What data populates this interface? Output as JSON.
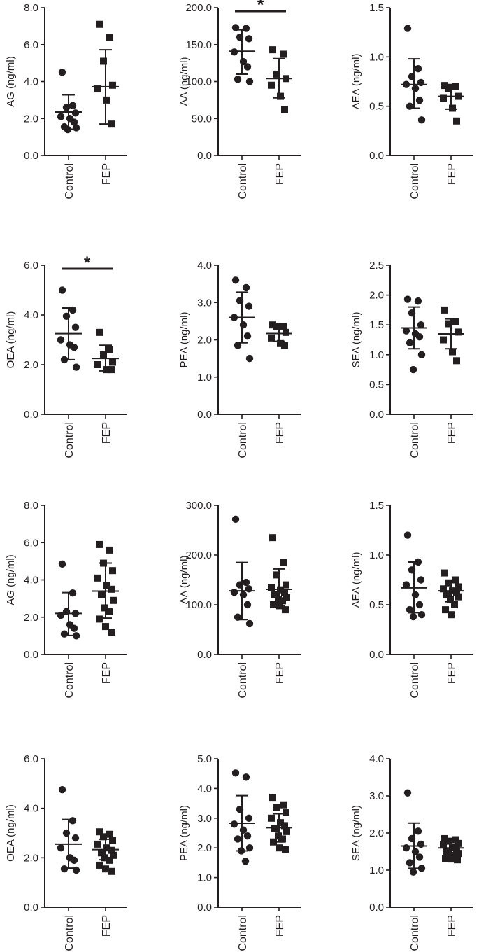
{
  "charts": [
    {
      "ylabel": "AG (ng/ml)",
      "ylim": [
        0,
        8
      ],
      "ticks": [
        "0.0",
        "2.0",
        "4.0",
        "6.0",
        "8.0"
      ],
      "categories": [
        "Control",
        "FEP"
      ],
      "significance": "",
      "control": {
        "mean": 2.35,
        "sd_low": 1.42,
        "sd_high": 3.28,
        "values": [
          4.5,
          2.7,
          2.6,
          2.3,
          2.1,
          2.0,
          1.8,
          1.55,
          1.5,
          1.4
        ]
      },
      "fep": {
        "mean": 3.72,
        "sd_low": 1.7,
        "sd_high": 5.72,
        "values": [
          7.1,
          6.4,
          5.1,
          3.8,
          3.6,
          3.0,
          1.7
        ]
      }
    },
    {
      "ylabel": "AA (ng/ml)",
      "ylim": [
        0,
        200
      ],
      "ticks": [
        "0.0",
        "50.0",
        "100.0",
        "150.0",
        "200.0"
      ],
      "categories": [
        "Control",
        "FEP"
      ],
      "significance": "*",
      "control": {
        "mean": 141,
        "sd_low": 110,
        "sd_high": 170,
        "values": [
          173,
          172,
          160,
          158,
          140,
          127,
          120,
          103,
          100
        ]
      },
      "fep": {
        "mean": 104,
        "sd_low": 78,
        "sd_high": 131,
        "values": [
          143,
          137,
          110,
          104,
          95,
          80,
          62
        ]
      }
    },
    {
      "ylabel": "AEA (ng/ml)",
      "ylim": [
        0,
        1.5
      ],
      "ticks": [
        "0.0",
        "0.5",
        "1.0",
        "1.5"
      ],
      "categories": [
        "Control",
        "FEP"
      ],
      "significance": "",
      "control": {
        "mean": 0.72,
        "sd_low": 0.48,
        "sd_high": 0.98,
        "values": [
          1.29,
          0.88,
          0.8,
          0.74,
          0.72,
          0.68,
          0.56,
          0.5,
          0.36
        ]
      },
      "fep": {
        "mean": 0.6,
        "sd_low": 0.47,
        "sd_high": 0.72,
        "values": [
          0.71,
          0.7,
          0.68,
          0.6,
          0.58,
          0.48,
          0.35
        ]
      }
    },
    {
      "ylabel": "OEA (ng/ml)",
      "ylim": [
        0,
        6
      ],
      "ticks": [
        "0.0",
        "2.0",
        "4.0",
        "6.0"
      ],
      "categories": [
        "Control",
        "FEP"
      ],
      "significance": "*",
      "control": {
        "mean": 3.25,
        "sd_low": 2.2,
        "sd_high": 4.28,
        "values": [
          5.0,
          4.2,
          3.95,
          3.5,
          3.0,
          2.8,
          2.7,
          2.2,
          1.9
        ]
      },
      "fep": {
        "mean": 2.25,
        "sd_low": 1.75,
        "sd_high": 2.78,
        "values": [
          3.3,
          2.6,
          2.4,
          2.1,
          2.0,
          1.8,
          1.8
        ]
      }
    },
    {
      "ylabel": "PEA (ng/ml)",
      "ylim": [
        0,
        4
      ],
      "ticks": [
        "0.0",
        "1.0",
        "2.0",
        "3.0",
        "4.0"
      ],
      "categories": [
        "Control",
        "FEP"
      ],
      "significance": "",
      "control": {
        "mean": 2.6,
        "sd_low": 1.92,
        "sd_high": 3.28,
        "values": [
          3.6,
          3.4,
          3.05,
          2.9,
          2.6,
          2.4,
          2.1,
          1.85,
          1.5
        ]
      },
      "fep": {
        "mean": 2.17,
        "sd_low": 1.96,
        "sd_high": 2.38,
        "values": [
          2.4,
          2.35,
          2.35,
          2.2,
          2.05,
          1.9,
          1.85
        ]
      }
    },
    {
      "ylabel": "SEA (ng/ml)",
      "ylim": [
        0,
        2.5
      ],
      "ticks": [
        "0.0",
        "0.5",
        "1.0",
        "1.5",
        "2.0",
        "2.5"
      ],
      "categories": [
        "Control",
        "FEP"
      ],
      "significance": "",
      "control": {
        "mean": 1.45,
        "sd_low": 1.1,
        "sd_high": 1.8,
        "values": [
          1.93,
          1.9,
          1.7,
          1.5,
          1.4,
          1.35,
          1.3,
          1.2,
          1.0,
          0.75
        ]
      },
      "fep": {
        "mean": 1.35,
        "sd_low": 1.1,
        "sd_high": 1.6,
        "values": [
          1.75,
          1.55,
          1.52,
          1.38,
          1.25,
          1.05,
          0.9
        ]
      }
    },
    {
      "ylabel": "AG (ng/ml)",
      "ylim": [
        0,
        8
      ],
      "ticks": [
        "0.0",
        "2.0",
        "4.0",
        "6.0",
        "8.0"
      ],
      "categories": [
        "Control",
        "FEP"
      ],
      "significance": "",
      "control": {
        "mean": 2.2,
        "sd_low": 1.02,
        "sd_high": 3.32,
        "values": [
          4.85,
          3.3,
          2.3,
          2.2,
          2.1,
          1.6,
          1.4,
          1.1,
          1.0
        ]
      },
      "fep": {
        "mean": 3.4,
        "sd_low": 1.95,
        "sd_high": 4.9,
        "values": [
          5.9,
          5.6,
          4.9,
          4.5,
          4.1,
          3.7,
          3.5,
          3.2,
          2.9,
          2.5,
          2.3,
          1.9,
          1.5,
          1.2
        ]
      }
    },
    {
      "ylabel": "AA (ng/ml)",
      "ylim": [
        0,
        300
      ],
      "ticks": [
        "0.0",
        "100.0",
        "200.0",
        "300.0"
      ],
      "categories": [
        "Control",
        "FEP"
      ],
      "significance": "",
      "control": {
        "mean": 128,
        "sd_low": 70,
        "sd_high": 185,
        "values": [
          272,
          145,
          140,
          132,
          125,
          120,
          100,
          75,
          62
        ]
      },
      "fep": {
        "mean": 131,
        "sd_low": 98,
        "sd_high": 172,
        "values": [
          235,
          185,
          160,
          140,
          135,
          130,
          125,
          120,
          115,
          110,
          108,
          100,
          98,
          90
        ]
      }
    },
    {
      "ylabel": "AEA (ng/ml)",
      "ylim": [
        0,
        1.5
      ],
      "ticks": [
        "0.0",
        "0.5",
        "1.0",
        "1.5"
      ],
      "categories": [
        "Control",
        "FEP"
      ],
      "significance": "",
      "control": {
        "mean": 0.67,
        "sd_low": 0.42,
        "sd_high": 0.93,
        "values": [
          1.2,
          0.93,
          0.85,
          0.75,
          0.7,
          0.6,
          0.5,
          0.45,
          0.4,
          0.38
        ]
      },
      "fep": {
        "mean": 0.64,
        "sd_low": 0.53,
        "sd_high": 0.74,
        "values": [
          0.82,
          0.75,
          0.72,
          0.68,
          0.66,
          0.64,
          0.62,
          0.6,
          0.58,
          0.55,
          0.5,
          0.45,
          0.4
        ]
      }
    },
    {
      "ylabel": "OEA (ng/ml)",
      "ylim": [
        0,
        6
      ],
      "ticks": [
        "0.0",
        "2.0",
        "4.0",
        "6.0"
      ],
      "categories": [
        "Control",
        "FEP"
      ],
      "significance": "",
      "control": {
        "mean": 2.55,
        "sd_low": 1.58,
        "sd_high": 3.55,
        "values": [
          4.75,
          3.5,
          3.0,
          2.8,
          2.4,
          2.0,
          1.9,
          1.55,
          1.5
        ]
      },
      "fep": {
        "mean": 2.33,
        "sd_low": 1.92,
        "sd_high": 2.75,
        "values": [
          3.05,
          2.95,
          2.85,
          2.7,
          2.55,
          2.4,
          2.3,
          2.2,
          2.1,
          2.0,
          1.9,
          1.7,
          1.55,
          1.45
        ]
      }
    },
    {
      "ylabel": "PEA (ng/ml)",
      "ylim": [
        0,
        5
      ],
      "ticks": [
        "0.0",
        "1.0",
        "2.0",
        "3.0",
        "4.0",
        "5.0"
      ],
      "categories": [
        "Control",
        "FEP"
      ],
      "significance": "",
      "control": {
        "mean": 2.83,
        "sd_low": 1.9,
        "sd_high": 3.76,
        "values": [
          4.52,
          4.38,
          3.3,
          3.0,
          2.8,
          2.6,
          2.4,
          2.3,
          2.0,
          1.9,
          1.55
        ]
      },
      "fep": {
        "mean": 2.68,
        "sd_low": 2.2,
        "sd_high": 3.15,
        "values": [
          3.7,
          3.45,
          3.35,
          3.2,
          3.0,
          2.85,
          2.75,
          2.65,
          2.55,
          2.4,
          2.3,
          2.2,
          2.0,
          1.95
        ]
      }
    },
    {
      "ylabel": "SEA (ng/ml)",
      "ylim": [
        0,
        4
      ],
      "ticks": [
        "0.0",
        "1.0",
        "2.0",
        "3.0",
        "4.0"
      ],
      "categories": [
        "Control",
        "FEP"
      ],
      "significance": "",
      "control": {
        "mean": 1.65,
        "sd_low": 1.05,
        "sd_high": 2.27,
        "values": [
          3.08,
          2.05,
          1.85,
          1.7,
          1.6,
          1.5,
          1.35,
          1.2,
          1.05,
          0.95
        ]
      },
      "fep": {
        "mean": 1.6,
        "sd_low": 1.33,
        "sd_high": 1.85,
        "values": [
          1.85,
          1.82,
          1.78,
          1.72,
          1.68,
          1.62,
          1.55,
          1.5,
          1.45,
          1.4,
          1.38,
          1.32,
          1.3,
          1.28
        ]
      }
    }
  ]
}
